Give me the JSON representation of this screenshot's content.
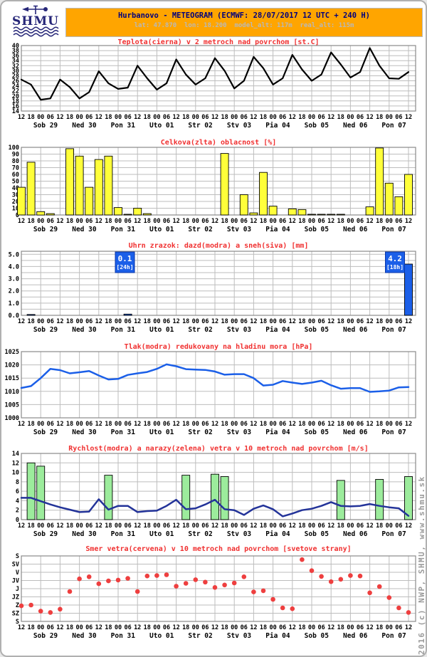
{
  "header": {
    "title": "Hurbanovo - METEOGRAM (ECMWF: 28/07/2017 12 UTC + 240 H)",
    "subtitle": "lat: 47.870  lon: 18.200  model_alt: 117m  real_alt: 115m",
    "banner_color": "#ffa500",
    "title_color": "#00007d",
    "logo_name": "SHMU"
  },
  "watermark": "2016 (c) NWP, SHMU, www.shmu.sk",
  "axis": {
    "hour_labels": [
      "12",
      "18",
      "00",
      "06",
      "12",
      "18",
      "00",
      "06",
      "12",
      "18",
      "00",
      "06",
      "12",
      "18",
      "00",
      "06",
      "12",
      "18",
      "00",
      "06",
      "12",
      "18",
      "00",
      "06",
      "12",
      "18",
      "00",
      "06",
      "12",
      "18",
      "00",
      "06",
      "12",
      "18",
      "00",
      "06",
      "12",
      "18",
      "00",
      "06",
      "12"
    ],
    "day_labels": [
      "Sob 29",
      "Ned 30",
      "Pon 31",
      "Uto 01",
      "Str 02",
      "Stv 03",
      "Pia 04",
      "Sob 05",
      "Ned 06",
      "Pon 07"
    ]
  },
  "chart_data": [
    {
      "id": "temperature",
      "type": "line",
      "title": "Teplota(cierna) v 2 metroch nad povrchom [st.C]",
      "ylim": [
        14,
        40
      ],
      "gridlines": [
        16,
        18,
        20,
        22,
        24,
        26,
        28,
        30,
        32,
        34,
        36,
        38
      ],
      "yticks": [
        {
          "label": "40",
          "value": 40
        },
        {
          "label": "38",
          "value": 38
        },
        {
          "label": "36",
          "value": 36
        },
        {
          "label": "34",
          "value": 34
        },
        {
          "label": "32",
          "value": 32
        },
        {
          "label": "30",
          "value": 30
        },
        {
          "label": "28",
          "value": 28
        },
        {
          "label": "26",
          "value": 26
        },
        {
          "label": "24",
          "value": 24
        },
        {
          "label": "22",
          "value": 22
        },
        {
          "label": "20",
          "value": 20
        },
        {
          "label": "18",
          "value": 18
        },
        {
          "label": "16",
          "value": 16
        },
        {
          "label": "14",
          "value": 14
        }
      ],
      "series": [
        {
          "name": "teplota",
          "type": "line",
          "color": "#000000",
          "width": 2.2,
          "values": [
            26.5,
            24.5,
            18.5,
            19,
            26.5,
            23.5,
            19,
            21.5,
            29.8,
            25,
            22.8,
            23.3,
            32,
            27,
            22.5,
            25,
            34.5,
            28.5,
            24.5,
            27,
            35,
            30,
            23,
            26,
            35.5,
            31,
            24.5,
            27,
            36.3,
            30.5,
            26,
            28.5,
            37.3,
            32.5,
            27.3,
            29.5,
            39,
            32,
            27,
            26.8,
            29.5
          ]
        }
      ]
    },
    {
      "id": "cloudiness",
      "type": "bar",
      "title": "Celkova(zlta) oblacnost [%]",
      "ylim": [
        0,
        100
      ],
      "gridlines": [
        10,
        20,
        30,
        40,
        50,
        60,
        70,
        80,
        90
      ],
      "yticks": [
        {
          "label": "100",
          "value": 100
        },
        {
          "label": "90",
          "value": 90
        },
        {
          "label": "80",
          "value": 80
        },
        {
          "label": "70",
          "value": 70
        },
        {
          "label": "60",
          "value": 60
        },
        {
          "label": "50",
          "value": 50
        },
        {
          "label": "40",
          "value": 40
        },
        {
          "label": "30",
          "value": 30
        },
        {
          "label": "20",
          "value": 20
        },
        {
          "label": "10",
          "value": 10
        },
        {
          "label": "0",
          "value": 0
        }
      ],
      "series": [
        {
          "name": "oblacnost",
          "type": "bar",
          "color": "#ffff3a",
          "values": [
            41,
            78,
            5,
            2,
            0,
            98,
            87,
            41,
            82,
            87,
            11,
            1,
            10,
            2,
            0,
            0,
            0,
            0,
            0,
            0,
            0,
            91,
            0,
            30,
            3,
            63,
            13,
            0,
            9,
            8,
            1,
            1,
            1,
            1,
            0,
            0,
            12,
            99,
            47,
            27,
            60
          ]
        }
      ]
    },
    {
      "id": "precipitation",
      "type": "bar",
      "title": "Uhrn zrazok: dazd(modra) a sneh(siva) [mm]",
      "ylim": [
        0,
        5.25
      ],
      "gridlines": [
        0.5,
        1.0,
        1.5,
        2.0,
        2.5,
        3.0,
        3.5,
        4.0,
        4.5,
        5.0
      ],
      "yticks": [
        {
          "label": "5.0",
          "value": 5
        },
        {
          "label": "4.0",
          "value": 4
        },
        {
          "label": "3.0",
          "value": 3
        },
        {
          "label": "2.0",
          "value": 2
        },
        {
          "label": "1.0",
          "value": 1
        },
        {
          "label": "0.0",
          "value": 0
        }
      ],
      "series": [
        {
          "name": "zrazky",
          "type": "bar",
          "color": "#1b5fe8",
          "values": [
            0,
            0.07,
            0,
            0,
            0,
            0,
            0,
            0,
            0,
            0,
            0,
            0.1,
            0,
            0,
            0,
            0,
            0,
            0,
            0,
            0,
            0,
            0,
            0,
            0,
            0,
            0,
            0,
            0,
            0,
            0,
            0,
            0,
            0,
            0,
            0,
            0,
            0,
            0,
            0,
            0,
            4.2
          ]
        }
      ],
      "annotations": [
        {
          "label": "0.1",
          "period": "[24h]",
          "center_tick": 10.7
        },
        {
          "label": "4.2",
          "period": "[18h]",
          "center_tick": 38.6
        }
      ]
    },
    {
      "id": "pressure",
      "type": "line",
      "title": "Tlak(modra) redukovany na hladinu mora [hPa]",
      "ylim": [
        1000,
        1025
      ],
      "gridlines": [
        1005,
        1010,
        1015,
        1020
      ],
      "yticks": [
        {
          "label": "1025",
          "value": 1025
        },
        {
          "label": "1020",
          "value": 1020
        },
        {
          "label": "1015",
          "value": 1015
        },
        {
          "label": "1010",
          "value": 1010
        },
        {
          "label": "1005",
          "value": 1005
        },
        {
          "label": "1000",
          "value": 1000
        }
      ],
      "series": [
        {
          "name": "tlak",
          "type": "line",
          "color": "#1b5fe8",
          "width": 2.5,
          "values": [
            1011.3,
            1012,
            1015,
            1018.5,
            1018,
            1016.8,
            1017.2,
            1017.7,
            1016,
            1014.5,
            1014.7,
            1016.2,
            1016.8,
            1017.3,
            1018.5,
            1020.2,
            1019.5,
            1018.4,
            1018.2,
            1018.1,
            1017.5,
            1016.3,
            1016.5,
            1016.5,
            1015,
            1012.2,
            1012.5,
            1013.9,
            1013.3,
            1012.8,
            1013.3,
            1014,
            1012.3,
            1011,
            1011.2,
            1011.2,
            1009.8,
            1010,
            1010.3,
            1011.5,
            1011.6
          ]
        }
      ]
    },
    {
      "id": "wind-speed",
      "type": "line+bar",
      "title": "Rychlost(modra) a narazy(zelena) vetra v 10 metroch nad povrchom [m/s]",
      "ylim": [
        0,
        14
      ],
      "gridlines": [
        2,
        4,
        6,
        8,
        10,
        12
      ],
      "yticks": [
        {
          "label": "14",
          "value": 14
        },
        {
          "label": "12",
          "value": 12
        },
        {
          "label": "10",
          "value": 10
        },
        {
          "label": "8",
          "value": 8
        },
        {
          "label": "6",
          "value": 6
        },
        {
          "label": "4",
          "value": 4
        },
        {
          "label": "2",
          "value": 2
        },
        {
          "label": "0",
          "value": 0
        }
      ],
      "series": [
        {
          "name": "narazy",
          "type": "bar",
          "color": "#9cec9c",
          "values": [
            0,
            12,
            11.3,
            0,
            0,
            0,
            0,
            0,
            0,
            9.4,
            0,
            0,
            0,
            0,
            0,
            0,
            0,
            9.4,
            0,
            0,
            9.6,
            9.1,
            0,
            0,
            0,
            0,
            0,
            0,
            0,
            0,
            0,
            0,
            0,
            8.3,
            0,
            0,
            0,
            8.5,
            0,
            0,
            9.1
          ]
        },
        {
          "name": "rychlost",
          "type": "line",
          "color": "#233399",
          "width": 2.5,
          "values": [
            4.6,
            4.6,
            3.9,
            3.2,
            2.6,
            2.1,
            1.6,
            1.7,
            4.3,
            2.1,
            2.9,
            2.9,
            1.6,
            1.8,
            1.9,
            2.9,
            4.2,
            2.2,
            2.4,
            3.2,
            4.2,
            2.2,
            2.0,
            1.0,
            2.3,
            3.0,
            2.2,
            0.7,
            1.3,
            2.0,
            2.3,
            2.9,
            3.7,
            2.9,
            2.8,
            2.9,
            3.3,
            2.9,
            2.6,
            2.4,
            0.8
          ]
        }
      ]
    },
    {
      "id": "wind-direction",
      "type": "scatter",
      "title": "Smer vetra(cervena) v 10 metroch nad povrchom [svetove strany]",
      "ylim": [
        0,
        8
      ],
      "gridlines": [
        1,
        2,
        3,
        4,
        5,
        6,
        7
      ],
      "yticks": [
        {
          "label": "S",
          "value": 8
        },
        {
          "label": "SV",
          "value": 7
        },
        {
          "label": "V",
          "value": 6
        },
        {
          "label": "JV",
          "value": 5
        },
        {
          "label": "J",
          "value": 4
        },
        {
          "label": "JZ",
          "value": 3
        },
        {
          "label": "Z",
          "value": 2
        },
        {
          "label": "SZ",
          "value": 1
        },
        {
          "label": "S",
          "value": 0
        }
      ],
      "series": [
        {
          "name": "smer",
          "type": "scatter",
          "color": "#ee3f3f",
          "values": [
            1.9,
            2.0,
            1.25,
            1.1,
            1.5,
            3.65,
            5.2,
            5.45,
            4.6,
            4.95,
            5.05,
            5.25,
            3.65,
            5.55,
            5.6,
            5.7,
            4.3,
            4.65,
            5.1,
            4.8,
            4.15,
            4.45,
            4.7,
            5.45,
            3.6,
            3.75,
            2.7,
            1.65,
            1.55,
            7.55,
            6.2,
            5.5,
            4.85,
            5.15,
            5.6,
            5.55,
            3.5,
            4.25,
            2.9,
            1.65,
            1.1
          ]
        }
      ]
    }
  ]
}
